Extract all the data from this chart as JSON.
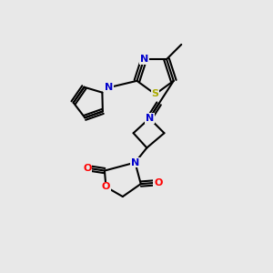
{
  "background_color": "#e8e8e8",
  "figsize": [
    3.0,
    3.0
  ],
  "dpi": 100,
  "colors": {
    "C": "#000000",
    "N": "#0000cc",
    "O": "#ff0000",
    "S": "#aaaa00",
    "bond": "#000000"
  },
  "lw": 1.5,
  "fs": 8.0
}
